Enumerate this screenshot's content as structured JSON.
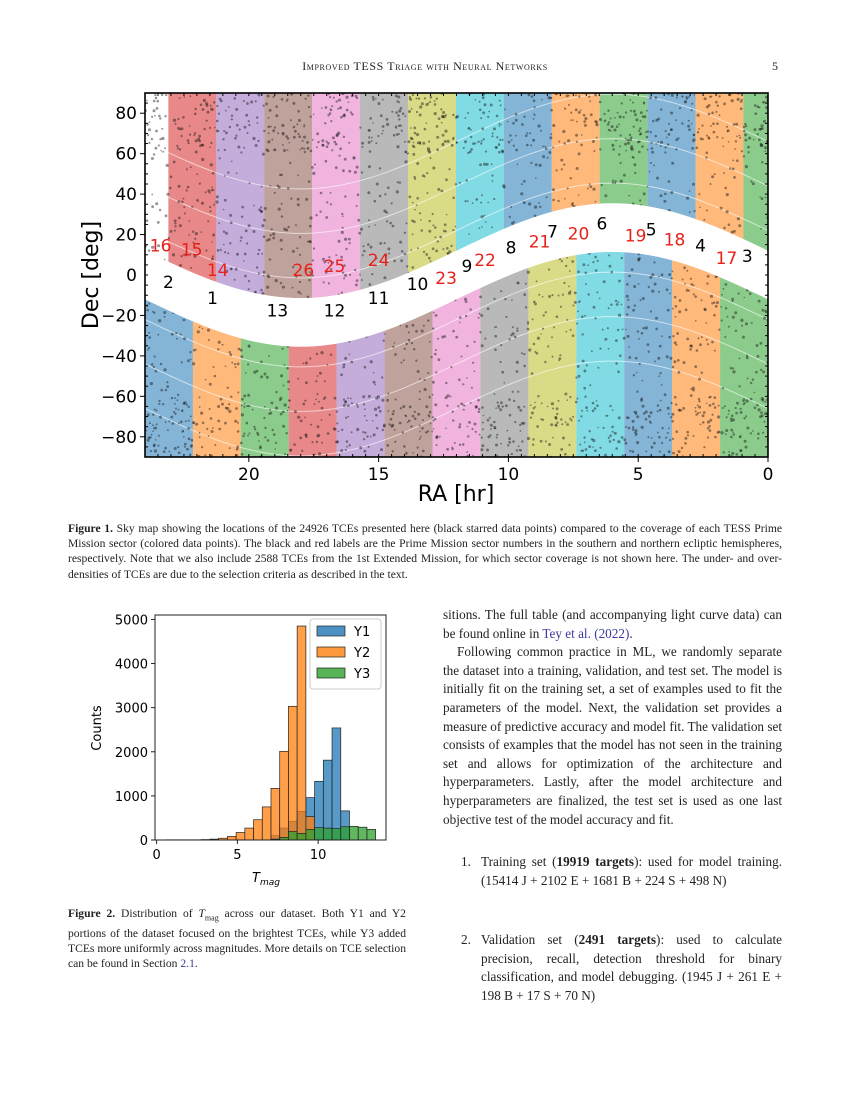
{
  "header": {
    "running_title": "Improved TESS Triage with Neural Networks",
    "page_number": "5"
  },
  "figure1": {
    "chart_data": {
      "type": "scatter",
      "xlabel": "RA [hr]",
      "ylabel": "Dec [deg]",
      "xlim": [
        24,
        0
      ],
      "ylim": [
        -90,
        90
      ],
      "xticks": [
        "20",
        "15",
        "10",
        "5",
        "0"
      ],
      "yticks": [
        "80",
        "60",
        "40",
        "20",
        "0",
        "−20",
        "−40",
        "−60",
        "−80"
      ],
      "grid": false,
      "series": [
        {
          "description_marker": "black star",
          "count": 24926
        },
        {
          "description_marker": "colored points per sector"
        }
      ],
      "sector_labels": [
        {
          "text": "1",
          "ra": 21.4,
          "dec": -11,
          "color": "#000000"
        },
        {
          "text": "2",
          "ra": 23.1,
          "dec": -3,
          "color": "#000000"
        },
        {
          "text": "3",
          "ra": 0.8,
          "dec": 10,
          "color": "#000000"
        },
        {
          "text": "4",
          "ra": 2.6,
          "dec": 15,
          "color": "#000000"
        },
        {
          "text": "5",
          "ra": 4.5,
          "dec": 23,
          "color": "#000000"
        },
        {
          "text": "6",
          "ra": 6.4,
          "dec": 26,
          "color": "#000000"
        },
        {
          "text": "7",
          "ra": 8.3,
          "dec": 22,
          "color": "#000000"
        },
        {
          "text": "8",
          "ra": 9.9,
          "dec": 14,
          "color": "#000000"
        },
        {
          "text": "9",
          "ra": 11.6,
          "dec": 5,
          "color": "#000000"
        },
        {
          "text": "10",
          "ra": 13.5,
          "dec": -4,
          "color": "#000000"
        },
        {
          "text": "11",
          "ra": 15.0,
          "dec": -11,
          "color": "#000000"
        },
        {
          "text": "12",
          "ra": 16.7,
          "dec": -17,
          "color": "#000000"
        },
        {
          "text": "13",
          "ra": 18.9,
          "dec": -17,
          "color": "#000000"
        },
        {
          "text": "14",
          "ra": 21.2,
          "dec": 3,
          "color": "#e8201a"
        },
        {
          "text": "15",
          "ra": 22.2,
          "dec": 13,
          "color": "#e8201a"
        },
        {
          "text": "16",
          "ra": 23.4,
          "dec": 15,
          "color": "#e8201a"
        },
        {
          "text": "17",
          "ra": 1.6,
          "dec": 9,
          "color": "#e8201a"
        },
        {
          "text": "18",
          "ra": 3.6,
          "dec": 18,
          "color": "#e8201a"
        },
        {
          "text": "19",
          "ra": 5.1,
          "dec": 20,
          "color": "#e8201a"
        },
        {
          "text": "20",
          "ra": 7.3,
          "dec": 21,
          "color": "#e8201a"
        },
        {
          "text": "21",
          "ra": 8.8,
          "dec": 17,
          "color": "#e8201a"
        },
        {
          "text": "22",
          "ra": 10.9,
          "dec": 8,
          "color": "#e8201a"
        },
        {
          "text": "23",
          "ra": 12.4,
          "dec": -1,
          "color": "#e8201a"
        },
        {
          "text": "24",
          "ra": 15.0,
          "dec": 8,
          "color": "#e8201a"
        },
        {
          "text": "25",
          "ra": 16.7,
          "dec": 5,
          "color": "#e8201a"
        },
        {
          "text": "26",
          "ra": 17.9,
          "dec": 3,
          "color": "#e8201a"
        }
      ],
      "sector_colors": [
        "#1f77b4",
        "#ff7f0e",
        "#2ca02c",
        "#d62728",
        "#9467bd",
        "#8c564b",
        "#e377c2",
        "#7f7f7f",
        "#bcbd22",
        "#17becf",
        "#1f77b4",
        "#ff7f0e",
        "#2ca02c"
      ]
    },
    "caption_label": "Figure 1.",
    "caption": "Sky map showing the locations of the 24926 TCEs presented here (black starred data points) compared to the coverage of each TESS Prime Mission sector (colored data points). The black and red labels are the Prime Mission sector numbers in the southern and northern ecliptic hemispheres, respectively. Note that we also include 2588 TCEs from the 1st Extended Mission, for which sector coverage is not shown here. The under- and over-densities of TCEs are due to the selection criteria as described in the text."
  },
  "figure2": {
    "chart_data": {
      "type": "bar",
      "subtype": "histogram",
      "xlabel": "T_mag",
      "xlabel_main": "T",
      "xlabel_sub": "mag",
      "ylabel": "Counts",
      "xlim": [
        -0.1,
        14.2
      ],
      "ylim": [
        0,
        5100
      ],
      "xticks": [
        "0",
        "5",
        "10"
      ],
      "yticks": [
        "0",
        "1000",
        "2000",
        "3000",
        "4000",
        "5000"
      ],
      "bin_start": 0.6,
      "bin_width": 0.54,
      "legend_position": "top-right",
      "series": [
        {
          "name": "Y1",
          "color": "#1f77b4",
          "values": [
            0,
            0,
            0,
            0,
            0,
            0,
            0,
            0,
            0,
            0,
            0,
            0,
            100,
            270,
            420,
            650,
            960,
            1330,
            1810,
            2540,
            660,
            0,
            0,
            0
          ]
        },
        {
          "name": "Y2",
          "color": "#ff7f0e",
          "values": [
            5,
            5,
            5,
            5,
            10,
            20,
            40,
            80,
            170,
            270,
            460,
            750,
            1170,
            2010,
            3030,
            4850,
            530,
            0,
            0,
            0,
            0,
            0,
            0,
            0
          ]
        },
        {
          "name": "Y3",
          "color": "#2ca02c",
          "values": [
            0,
            0,
            0,
            0,
            0,
            0,
            0,
            0,
            0,
            0,
            0,
            0,
            20,
            60,
            190,
            150,
            240,
            280,
            270,
            260,
            300,
            310,
            290,
            240
          ]
        }
      ]
    },
    "caption_label": "Figure 2.",
    "caption_pre": "Distribution of ",
    "caption_sym": "T",
    "caption_sub": "mag",
    "caption_post": " across our dataset. Both Y1 and Y2 portions of the dataset focused on the brightest TCEs, while Y3 added TCEs more uniformly across magnitudes. More details on TCE selection can be found in Section ",
    "caption_link": "2.1",
    "caption_end": "."
  },
  "right_column": {
    "p1_pre": "sitions. The full table (and accompanying light curve data) can be found online in ",
    "p1_link": "Tey et al. (2022)",
    "p1_end": ".",
    "p2": "Following common practice in ML, we randomly separate the dataset into a training, validation, and test set. The model is initially fit on the training set, a set of examples used to fit the parameters of the model. Next, the validation set provides a measure of predictive accuracy and model fit. The validation set consists of examples that the model has not seen in the training set and allows for optimization of the architecture and hyperparameters. Lastly, after the model architecture and hyperparameters are finalized, the test set is used as one last objective test of the model accuracy and fit.",
    "list": [
      {
        "num": "1.",
        "pre": "Training set (",
        "bold": "19919 targets",
        "post": "): used for model training. (15414 J + 2102 E + 1681 B + 224 S + 498 N)"
      },
      {
        "num": "2.",
        "pre": "Validation set (",
        "bold": "2491 targets",
        "post": "): used to calculate precision, recall, detection threshold for binary classification, and model debugging. (1945 J + 261 E + 198 B + 17 S + 70 N)"
      }
    ]
  }
}
